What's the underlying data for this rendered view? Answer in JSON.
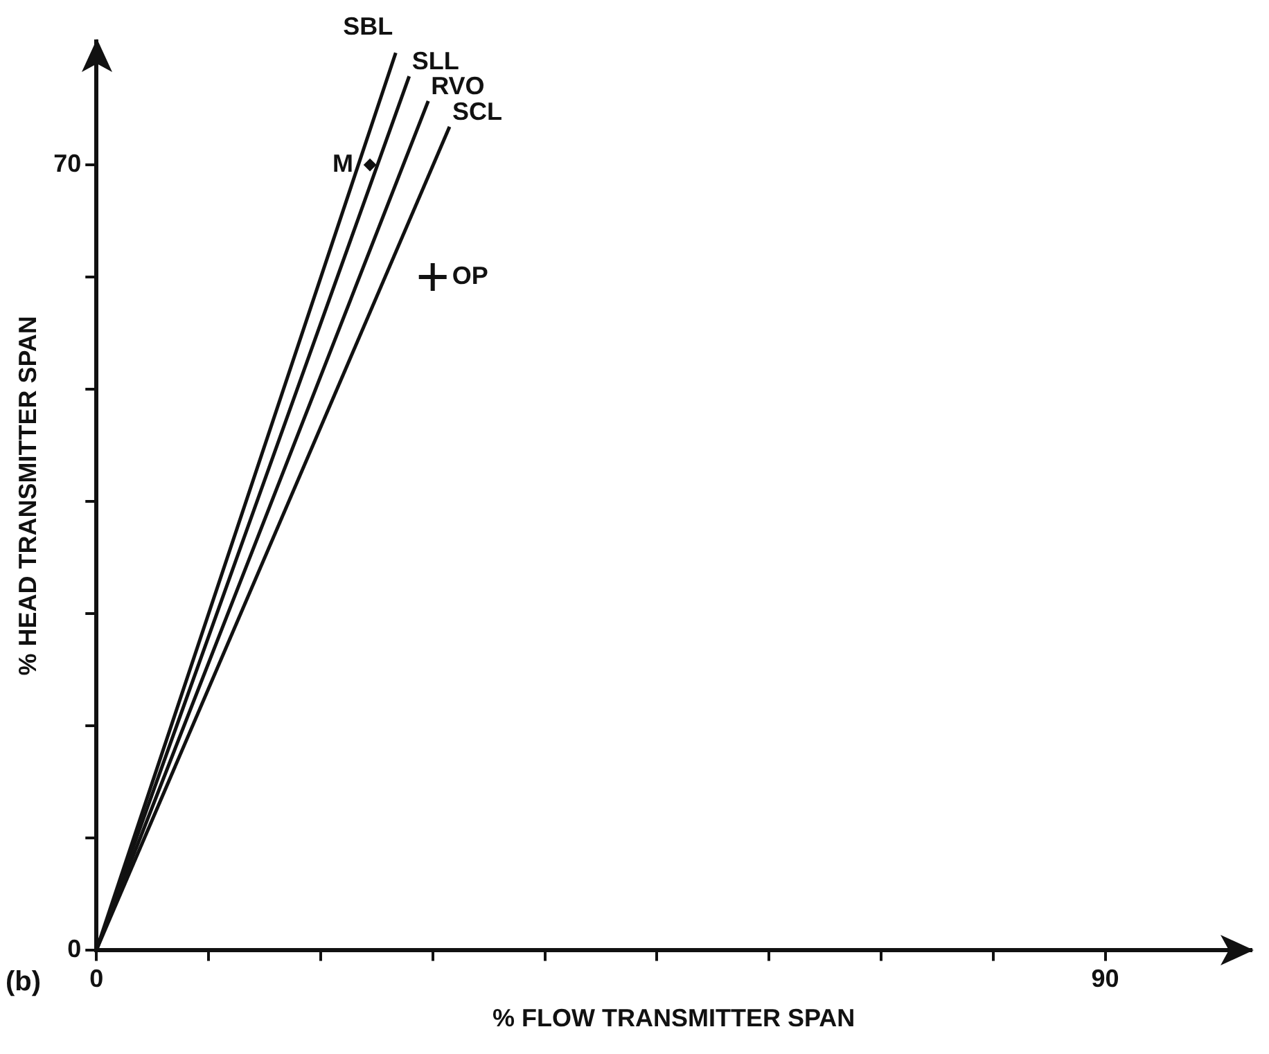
{
  "chart_data": {
    "type": "line",
    "xlabel": "% FLOW TRANSMITTER SPAN",
    "ylabel": "% HEAD TRANSMITTER SPAN",
    "annotations": [
      "(b)"
    ],
    "series": [
      {
        "name": "SBL",
        "x": [
          0,
          26.7
        ],
        "values": [
          0,
          80
        ],
        "color": "#111111"
      },
      {
        "name": "SLL",
        "x": [
          0,
          27.9
        ],
        "values": [
          0,
          77.9
        ],
        "color": "#111111"
      },
      {
        "name": "RVO",
        "x": [
          0,
          29.6
        ],
        "values": [
          0,
          75.7
        ],
        "color": "#111111"
      },
      {
        "name": "SCL",
        "x": [
          0,
          31.5
        ],
        "values": [
          0,
          73.4
        ],
        "color": "#111111"
      },
      {
        "name": "M",
        "type": "scatter",
        "marker": "diamond",
        "x": [
          24.4
        ],
        "values": [
          70
        ],
        "color": "#111111"
      },
      {
        "name": "OP",
        "type": "scatter",
        "marker": "cross",
        "x": [
          30
        ],
        "values": [
          60
        ],
        "color": "#111111"
      }
    ],
    "xlim": [
      0,
      103
    ],
    "ylim": [
      0,
      81
    ],
    "xticks": [
      0,
      {
        "value": 10,
        "label": null
      },
      {
        "value": 20,
        "label": null
      },
      {
        "value": 30,
        "label": null
      },
      {
        "value": 40,
        "label": null
      },
      {
        "value": 50,
        "label": null
      },
      {
        "value": 60,
        "label": null
      },
      {
        "value": 70,
        "label": null
      },
      {
        "value": 80,
        "label": null
      },
      90
    ],
    "yticks": [
      0,
      {
        "value": 10,
        "label": null
      },
      {
        "value": 20,
        "label": null
      },
      {
        "value": 30,
        "label": null
      },
      {
        "value": 40,
        "label": null
      },
      {
        "value": 50,
        "label": null
      },
      {
        "value": 60,
        "label": null
      },
      70
    ],
    "grid": false,
    "legend": false,
    "marker": "none",
    "line_style": "solid"
  }
}
